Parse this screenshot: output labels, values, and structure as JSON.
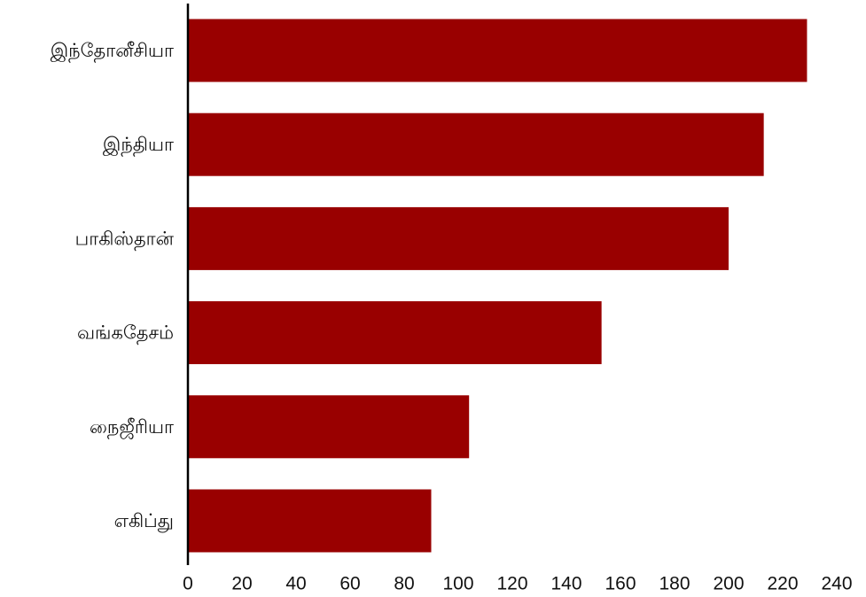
{
  "chart_data": {
    "type": "bar",
    "orientation": "horizontal",
    "title": "",
    "xlabel": "",
    "ylabel": "",
    "categories": [
      "இந்தோனீசியா",
      "இந்தியா",
      "பாகிஸ்தான்",
      "வங்கதேசம்",
      "நைஜீரியா",
      "எகிப்து"
    ],
    "values": [
      229,
      213,
      200,
      153,
      104,
      90
    ],
    "xlim": [
      0,
      240
    ],
    "xticks": [
      0,
      20,
      40,
      60,
      80,
      100,
      120,
      140,
      160,
      180,
      200,
      220,
      240
    ],
    "grid": false,
    "legend": "none",
    "bar_color": "#990000",
    "axis_color": "#000000"
  }
}
